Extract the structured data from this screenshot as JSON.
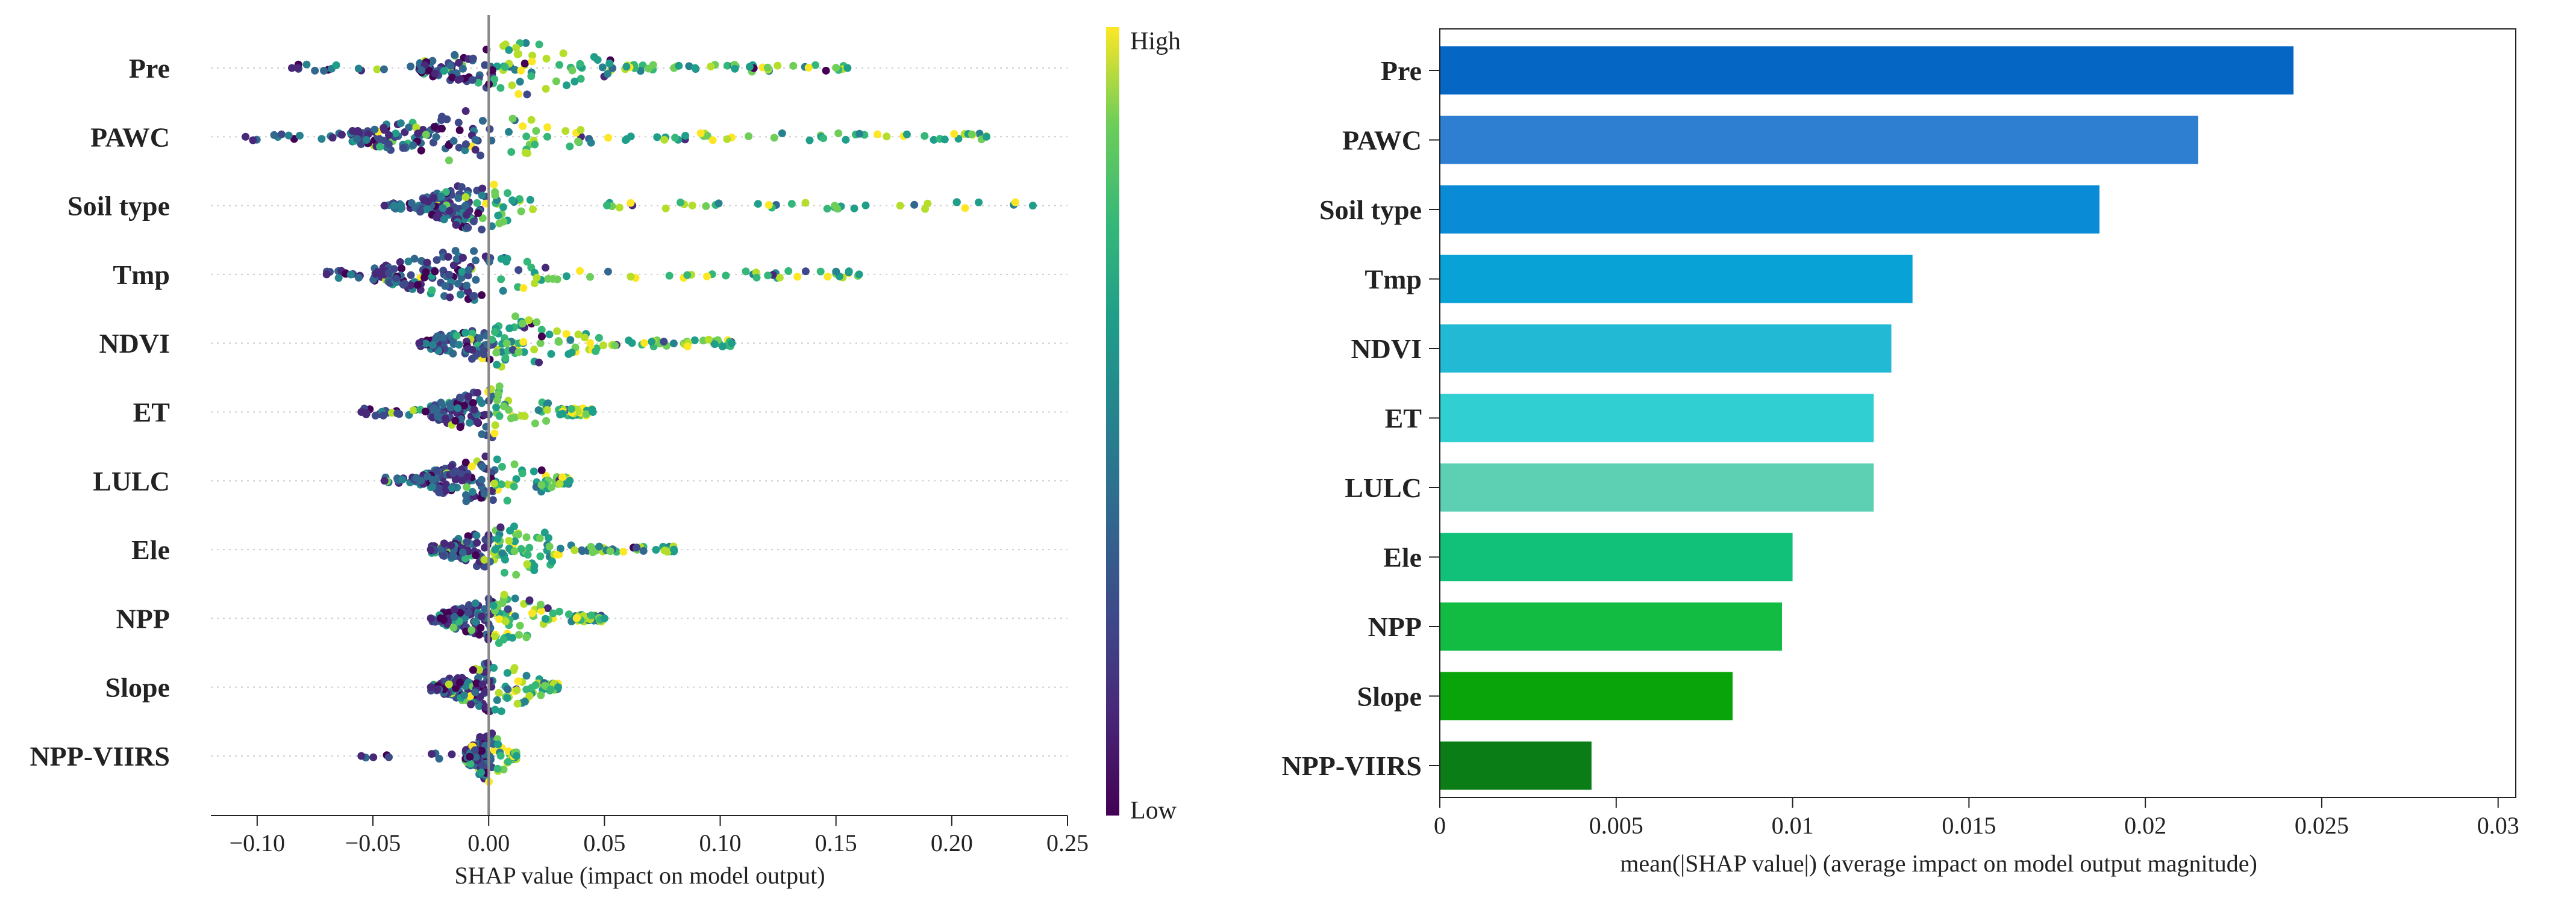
{
  "chart_data": [
    {
      "type": "scatter",
      "subtype": "shap-beeswarm",
      "title": "",
      "xlabel": "SHAP value (impact on model output)",
      "ylabel": "",
      "xlim": [
        -0.12,
        0.25
      ],
      "xticks": [
        -0.1,
        -0.05,
        0.0,
        0.05,
        0.1,
        0.15,
        0.2,
        0.25
      ],
      "xtick_labels": [
        "−0.10",
        "−0.05",
        "0.00",
        "0.05",
        "0.10",
        "0.15",
        "0.20",
        "0.25"
      ],
      "categories": [
        "Pre",
        "PAWC",
        "Soil type",
        "Tmp",
        "NDVI",
        "ET",
        "LULC",
        "Ele",
        "NPP",
        "Slope",
        "NPP-VIIRS"
      ],
      "colorbar": {
        "high_label": "High",
        "low_label": "Low",
        "colormap": "viridis"
      },
      "series": [
        {
          "name": "Pre",
          "min": -0.085,
          "max": 0.155,
          "core": [
            -0.03,
            0.06
          ]
        },
        {
          "name": "PAWC",
          "min": -0.105,
          "max": 0.215,
          "core": [
            -0.06,
            0.045
          ]
        },
        {
          "name": "Soil type",
          "min": -0.045,
          "max": 0.235,
          "core": [
            -0.03,
            0.02
          ]
        },
        {
          "name": "Tmp",
          "min": -0.07,
          "max": 0.16,
          "core": [
            -0.05,
            0.03
          ]
        },
        {
          "name": "NDVI",
          "min": -0.03,
          "max": 0.105,
          "core": [
            -0.025,
            0.05
          ]
        },
        {
          "name": "ET",
          "min": -0.055,
          "max": 0.045,
          "core": [
            -0.025,
            0.03
          ]
        },
        {
          "name": "LULC",
          "min": -0.045,
          "max": 0.035,
          "core": [
            -0.03,
            0.03
          ]
        },
        {
          "name": "Ele",
          "min": -0.025,
          "max": 0.08,
          "core": [
            -0.02,
            0.04
          ]
        },
        {
          "name": "NPP",
          "min": -0.025,
          "max": 0.05,
          "core": [
            -0.02,
            0.035
          ]
        },
        {
          "name": "Slope",
          "min": -0.025,
          "max": 0.03,
          "core": [
            -0.02,
            0.025
          ]
        },
        {
          "name": "NPP-VIIRS",
          "min": -0.055,
          "max": 0.012,
          "core": [
            -0.01,
            0.01
          ]
        }
      ]
    },
    {
      "type": "bar",
      "orientation": "horizontal",
      "title": "",
      "xlabel": "mean(|SHAP value|) (average impact on model output magnitude)",
      "ylabel": "",
      "xlim": [
        0,
        0.0305
      ],
      "xticks": [
        0,
        0.005,
        0.01,
        0.015,
        0.02,
        0.025,
        0.03
      ],
      "xtick_labels": [
        "0",
        "0.005",
        "0.01",
        "0.015",
        "0.02",
        "0.025",
        "0.03"
      ],
      "categories": [
        "Pre",
        "PAWC",
        "Soil type",
        "Tmp",
        "NDVI",
        "ET",
        "LULC",
        "Ele",
        "NPP",
        "Slope",
        "NPP-VIIRS"
      ],
      "values": [
        0.0242,
        0.0215,
        0.0187,
        0.0134,
        0.0128,
        0.0123,
        0.0123,
        0.01,
        0.0097,
        0.0083,
        0.0043
      ],
      "colors": [
        "#0566c4",
        "#2e7fd2",
        "#0a8bd6",
        "#08a2d6",
        "#21b9d4",
        "#30cfd2",
        "#5dcfb2",
        "#11c079",
        "#12bb42",
        "#08a40a",
        "#0a7d16"
      ]
    }
  ]
}
